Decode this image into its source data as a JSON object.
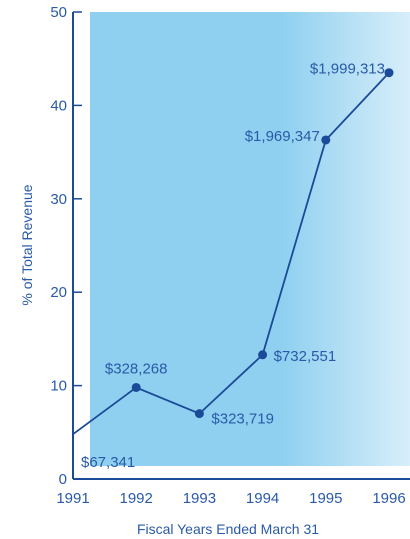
{
  "chart_data": {
    "type": "line",
    "title": "",
    "xlabel": "Fiscal Years Ended March 31",
    "ylabel": "% of Total Revenue",
    "ylim": [
      0,
      50
    ],
    "xlim": [
      1991,
      1996
    ],
    "x_ticks": [
      "1991",
      "1992",
      "1993",
      "1994",
      "1995",
      "1996"
    ],
    "y_ticks": [
      "0",
      "10",
      "20",
      "30",
      "40",
      "50"
    ],
    "grid": false,
    "legend": "none",
    "series": [
      {
        "x": [
          1991,
          1992,
          1993,
          1994,
          1995,
          1996
        ],
        "y": [
          4.8,
          9.8,
          7.0,
          13.3,
          36.3,
          43.5
        ],
        "labels": [
          "$67,341",
          "$328,268",
          "$323,719",
          "$732,551",
          "$1,969,347",
          "$1,999,313"
        ]
      }
    ],
    "colors": {
      "plot_area": "#8fd0f0",
      "line": "#1a4a98",
      "text": "#2a5aa8",
      "axis": "#1a4a98"
    }
  }
}
